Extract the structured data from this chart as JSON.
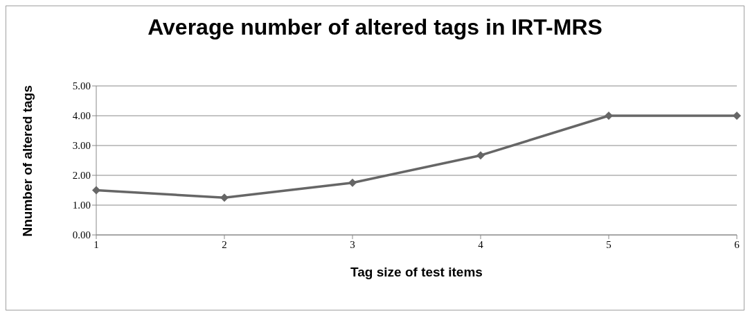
{
  "chart_data": {
    "type": "line",
    "title": "Average number of altered tags in IRT-MRS",
    "xlabel": "Tag size of test items",
    "ylabel": "Nnumber of altered tags",
    "categories": [
      "1",
      "2",
      "3",
      "4",
      "5",
      "6"
    ],
    "series": [
      {
        "color": "#666666",
        "values": [
          1.5,
          1.25,
          1.75,
          2.67,
          4.0,
          4.0
        ]
      }
    ],
    "ylim": [
      0,
      5
    ],
    "yticks": [
      {
        "value": 0,
        "label": "0.00"
      },
      {
        "value": 1,
        "label": "1.00"
      },
      {
        "value": 2,
        "label": "2.00"
      },
      {
        "value": 3,
        "label": "3.00"
      },
      {
        "value": 4,
        "label": "4.00"
      },
      {
        "value": 5,
        "label": "5.00"
      }
    ],
    "grid": "y",
    "legend": false,
    "marker": "diamond",
    "line_style": "solid"
  }
}
